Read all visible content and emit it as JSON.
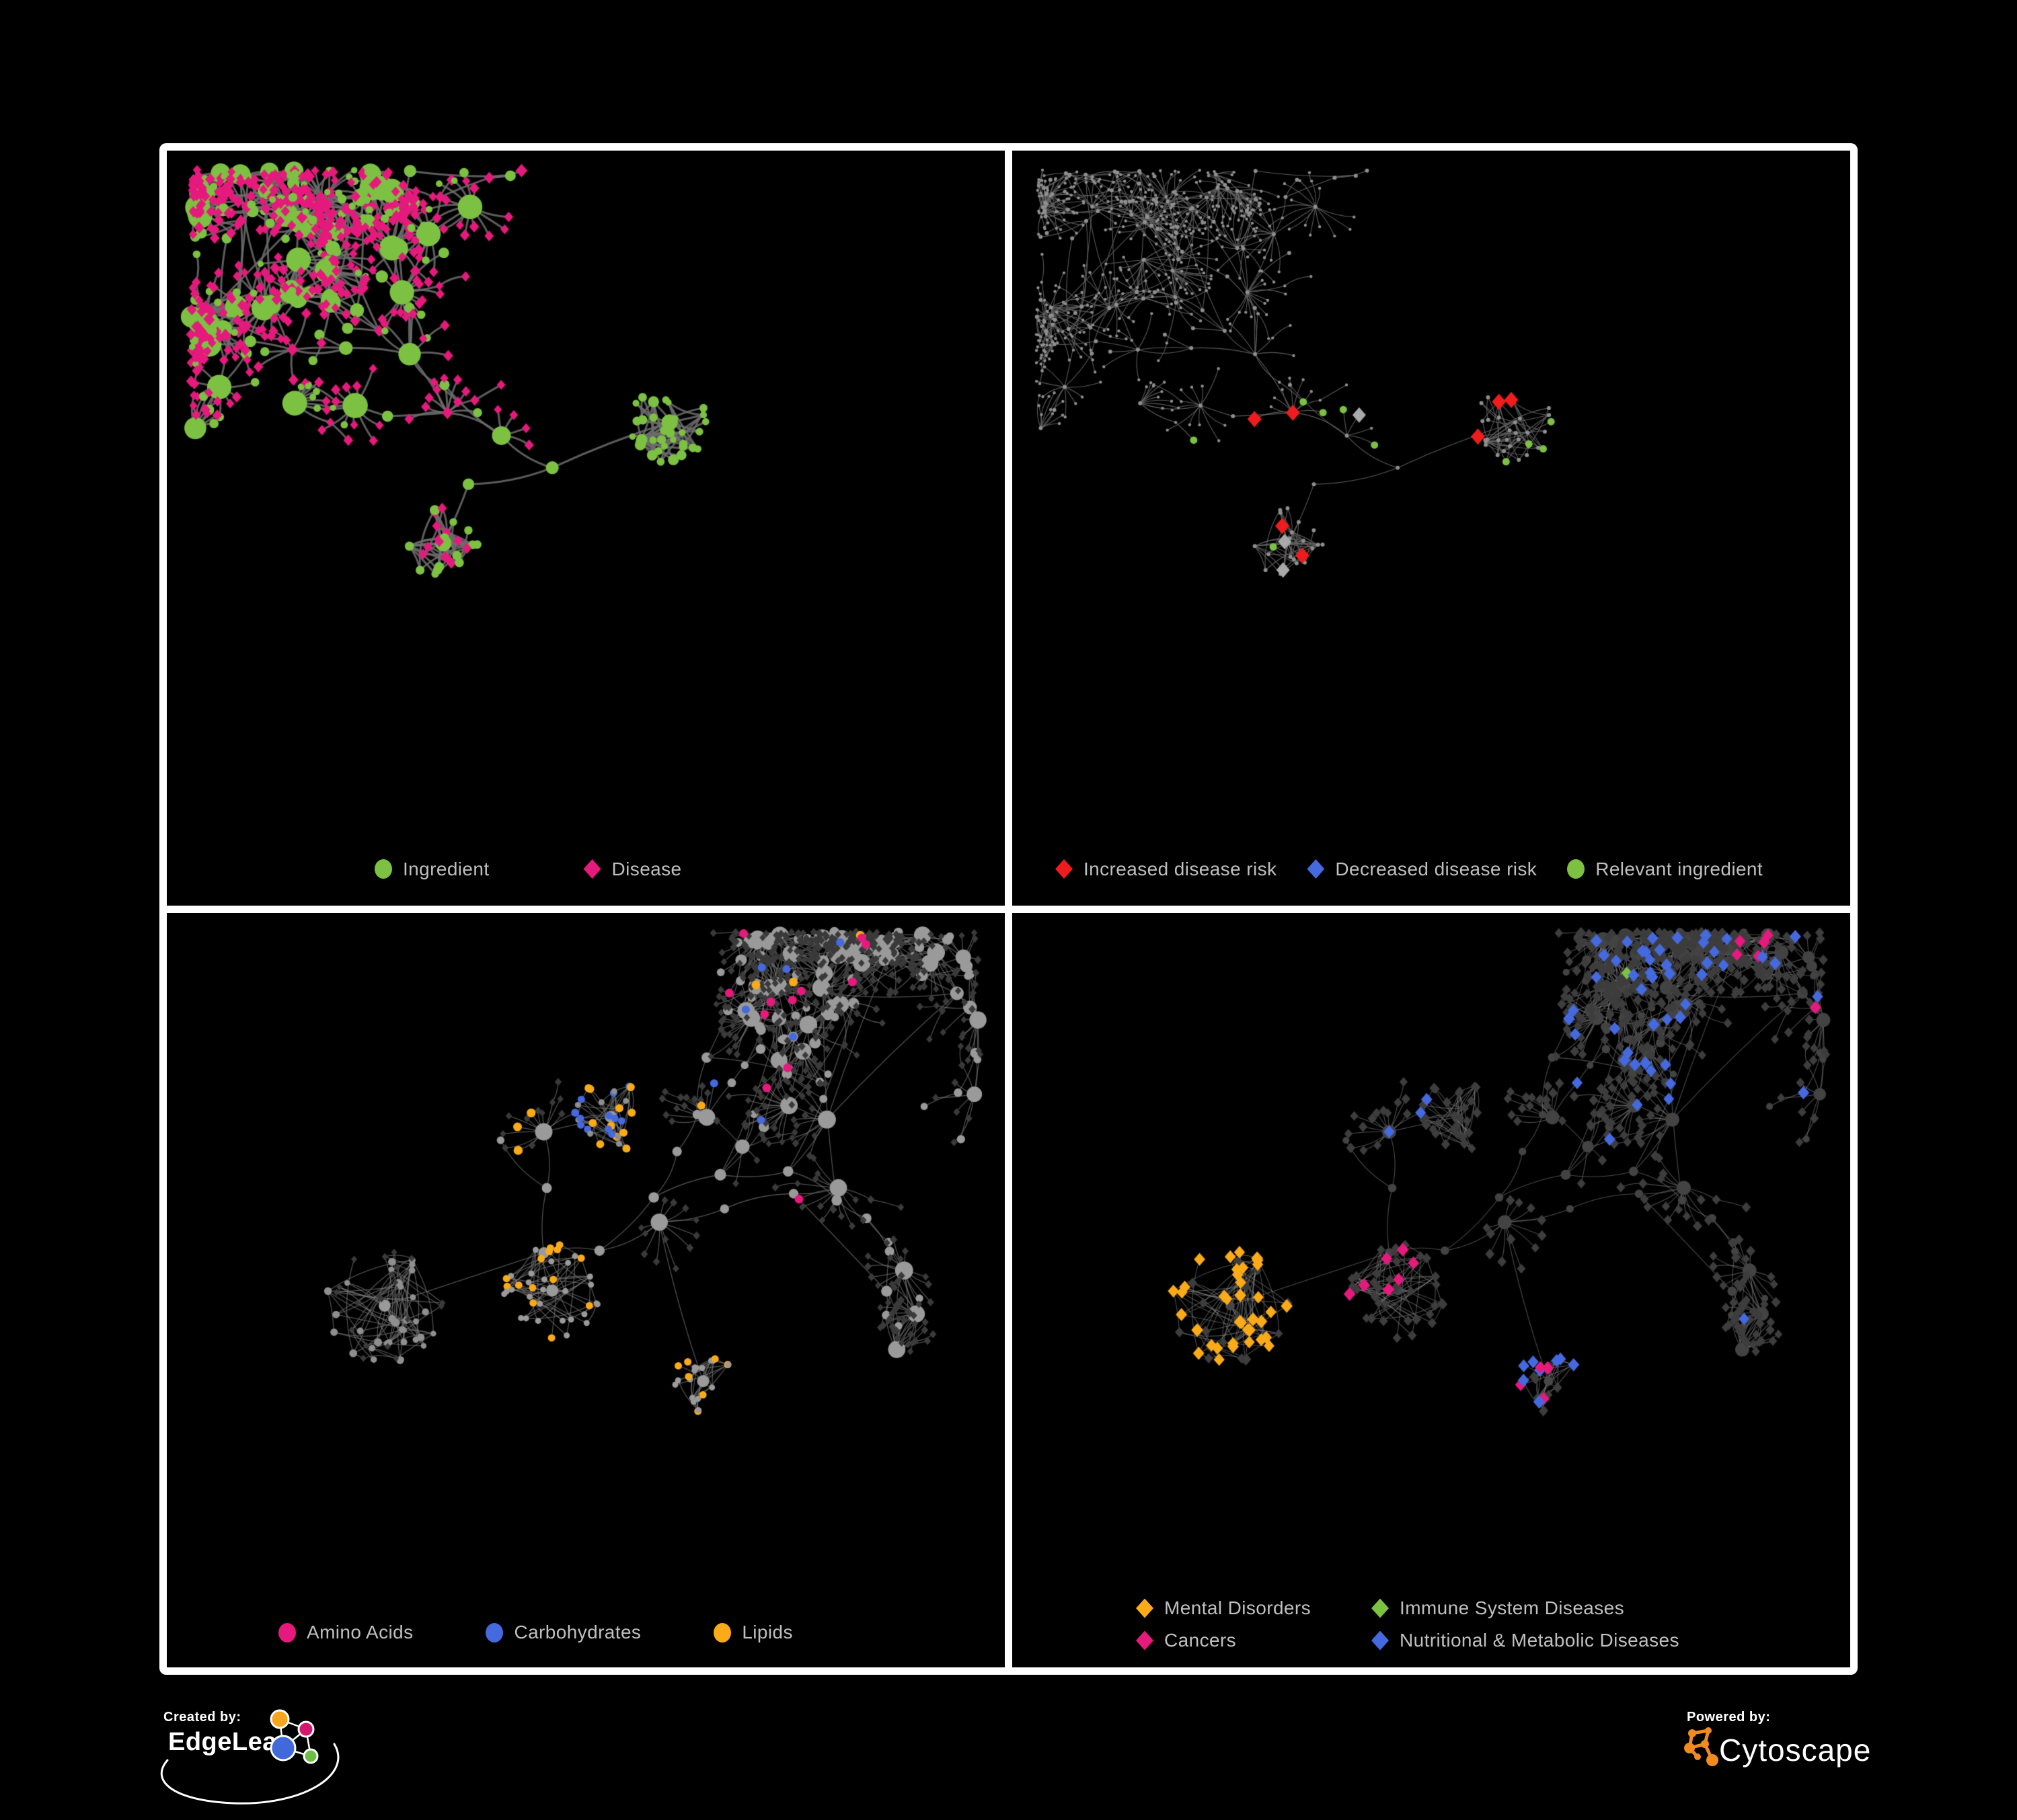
{
  "figure": {
    "background": "#000000",
    "frame_color": "#ffffff"
  },
  "palette": {
    "green": "#7dc142",
    "pink": "#e6197d",
    "red": "#ee1c1c",
    "blue": "#4569de",
    "orange": "#fbab18",
    "gray_hub": "#9a9a9a",
    "gray_tiny": "#8f8f8f",
    "gray_diamond": "#a9a9a9",
    "dark_node": "#3d3d3d",
    "legend_text": "#bfbfbf"
  },
  "panels": [
    {
      "name": "ingredient-disease-network",
      "edge_color": "#6d6d6d",
      "legend": [
        {
          "shape": "circle",
          "color": "#7dc142",
          "label": "Ingredient"
        },
        {
          "shape": "diamond",
          "color": "#e6197d",
          "label": "Disease"
        }
      ]
    },
    {
      "name": "disease-risk-network",
      "edge_color": "#646464",
      "legend": [
        {
          "shape": "diamond",
          "color": "#ee1c1c",
          "label": "Increased disease risk"
        },
        {
          "shape": "diamond",
          "color": "#4569de",
          "label": "Decreased disease risk"
        },
        {
          "shape": "circle",
          "color": "#7dc142",
          "label": "Relevant ingredient"
        }
      ]
    },
    {
      "name": "nutrient-class-network",
      "edge_color": "#7a7a7a",
      "legend": [
        {
          "shape": "circle",
          "color": "#e6197d",
          "label": "Amino Acids"
        },
        {
          "shape": "circle",
          "color": "#4569de",
          "label": "Carbohydrates"
        },
        {
          "shape": "circle",
          "color": "#fbab18",
          "label": "Lipids"
        }
      ]
    },
    {
      "name": "disease-class-network",
      "edge_color": "#8b8b8b",
      "legend": [
        {
          "shape": "diamond",
          "color": "#fbab18",
          "label": "Mental Disorders"
        },
        {
          "shape": "diamond",
          "color": "#7dc142",
          "label": "Immune System Diseases"
        },
        {
          "shape": "diamond",
          "color": "#e6197d",
          "label": "Cancers"
        },
        {
          "shape": "diamond",
          "color": "#4569de",
          "label": "Nutritional & Metabolic Diseases"
        }
      ]
    }
  ],
  "footer": {
    "created_by_label": "Created by:",
    "created_by_brand": "EdgeLeap",
    "powered_by_label": "Powered by:",
    "powered_by_brand": "Cytoscape",
    "edgeleap_logo_colors": {
      "orange": "#f6a51f",
      "pink": "#d6156c",
      "blue": "#4169d9",
      "green": "#6cbe45"
    },
    "cytoscape_logo_color": "#f18a21"
  }
}
